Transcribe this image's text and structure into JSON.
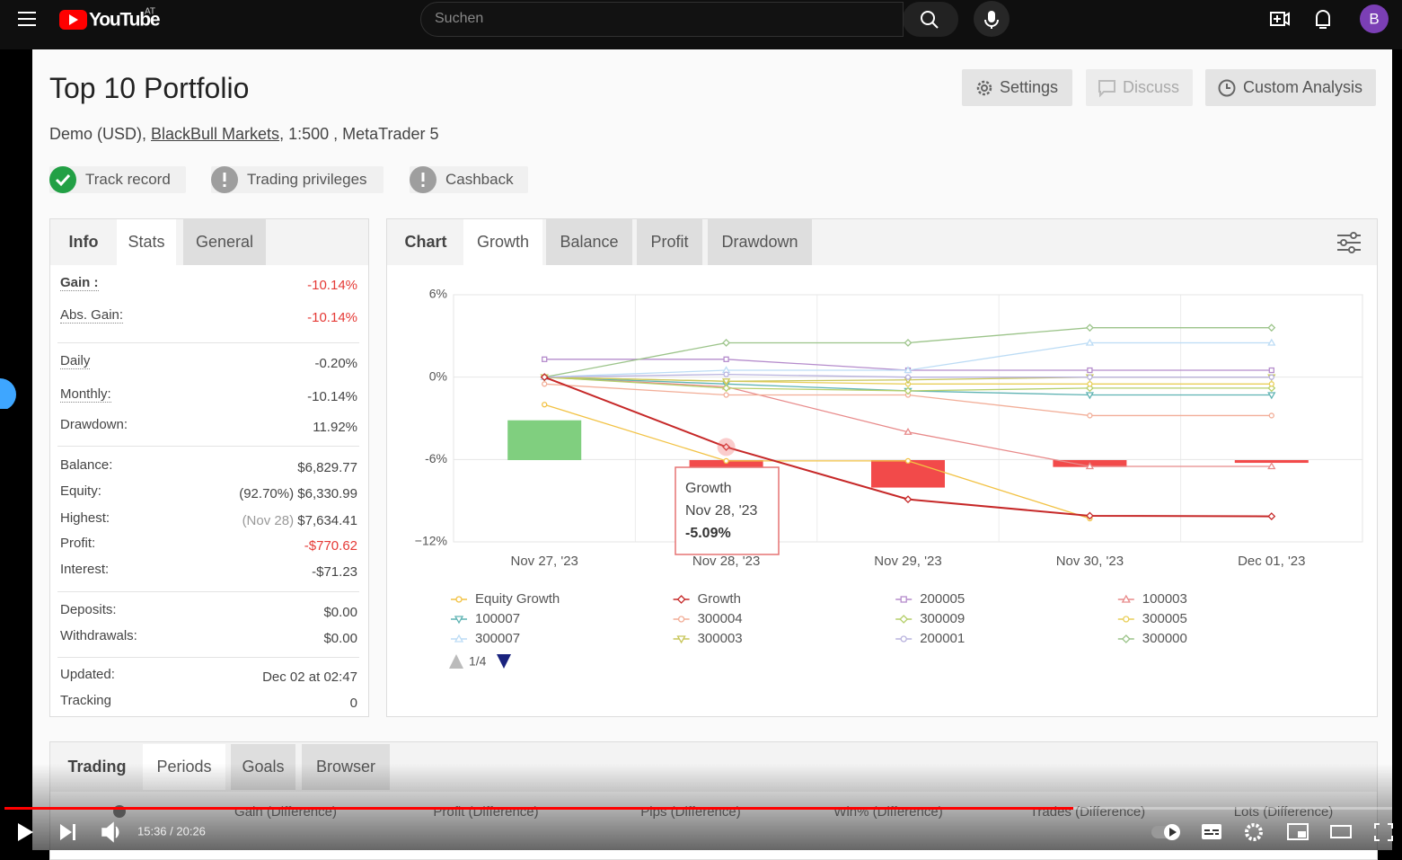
{
  "youtube": {
    "logo": "YouTube",
    "region": "AT",
    "search_placeholder": "Suchen",
    "avatar": "B"
  },
  "header": {
    "title": "Top 10 Portfolio",
    "account_prefix": "Demo (USD), ",
    "broker": "BlackBull Markets",
    "account_suffix": ", 1:500 , MetaTrader 5",
    "buttons": [
      "Settings",
      "Discuss",
      "Custom Analysis"
    ],
    "badges": [
      "Track record",
      "Trading privileges",
      "Cashback"
    ]
  },
  "stats_panel": {
    "tabs": [
      "Info",
      "Stats",
      "General"
    ],
    "groups": [
      [
        {
          "label": "Gain :",
          "value": "-10.14%",
          "color": "#e53935",
          "dotted": true
        },
        {
          "label": "Abs. Gain:",
          "value": "-10.14%",
          "color": "#e53935",
          "dotted": true
        }
      ],
      [
        {
          "label": "Daily",
          "value": "-0.20%",
          "dotted": true
        },
        {
          "label": "Monthly:",
          "value": "-10.14%",
          "dotted": true
        },
        {
          "label": "Drawdown:",
          "value": "11.92%"
        }
      ],
      [
        {
          "label": "Balance:",
          "value": "$6,829.77"
        },
        {
          "label": "Equity:",
          "note": "(92.70%)",
          "value": "$6,330.99"
        },
        {
          "label": "Highest:",
          "note": "(Nov 28)",
          "value": "$7,634.41"
        },
        {
          "label": "Profit:",
          "value": "-$770.62",
          "color": "#e53935"
        },
        {
          "label": "Interest:",
          "value": "-$71.23"
        }
      ],
      [
        {
          "label": "Deposits:",
          "value": "$0.00"
        },
        {
          "label": "Withdrawals:",
          "value": "$0.00"
        }
      ],
      [
        {
          "label": "Updated:",
          "value": "Dec 02 at 02:47"
        },
        {
          "label": "Tracking",
          "value": "0"
        }
      ]
    ]
  },
  "chart_tabs": [
    "Chart",
    "Growth",
    "Balance",
    "Profit",
    "Drawdown"
  ],
  "chart_data": {
    "type": "line",
    "categories": [
      "Nov 27, '23",
      "Nov 28, '23",
      "Nov 29, '23",
      "Nov 30, '23",
      "Dec 01, '23"
    ],
    "ylim": [
      -12,
      6
    ],
    "yticks": [
      {
        "value": 6,
        "label": "6%"
      },
      {
        "value": 0,
        "label": "0%"
      },
      {
        "value": -6,
        "label": "-6%"
      },
      {
        "value": -12,
        "label": "−12%"
      }
    ],
    "grid": true,
    "bars": {
      "values": [
        2.9,
        -0.5,
        -2.0,
        -0.5,
        -0.2
      ],
      "positive_color": "#80cf7f",
      "negative_color": "#f24a4a"
    },
    "series": [
      {
        "name": "Equity Growth",
        "color": "#f2c244",
        "marker": "circle",
        "values": [
          -2.0,
          -6.1,
          -6.1,
          -10.3,
          null
        ]
      },
      {
        "name": "Growth",
        "color": "#c62828",
        "marker": "diamond",
        "values": [
          0,
          -5.09,
          -8.9,
          -10.1,
          -10.14
        ]
      },
      {
        "name": "200005",
        "color": "#b58ccc",
        "marker": "square",
        "values": [
          1.3,
          1.3,
          0.5,
          0.5,
          0.5
        ]
      },
      {
        "name": "100003",
        "color": "#e88a8a",
        "marker": "triangle",
        "values": [
          0,
          -0.7,
          -4.0,
          -6.5,
          -6.5
        ]
      },
      {
        "name": "100007",
        "color": "#5fb3b3",
        "marker": "triangle-down",
        "values": [
          0,
          -0.5,
          -1.0,
          -1.3,
          -1.3
        ]
      },
      {
        "name": "300004",
        "color": "#f2ae98",
        "marker": "circle",
        "values": [
          -0.5,
          -1.3,
          -1.3,
          -2.8,
          -2.8
        ]
      },
      {
        "name": "300009",
        "color": "#b5cf6b",
        "marker": "diamond",
        "values": [
          0,
          -0.8,
          -1.0,
          -0.8,
          -0.8
        ]
      },
      {
        "name": "300005",
        "color": "#e9cf5a",
        "marker": "circle",
        "values": [
          0,
          -0.3,
          -0.5,
          -0.5,
          -0.5
        ]
      },
      {
        "name": "300007",
        "color": "#bcdcf5",
        "marker": "triangle",
        "values": [
          0,
          0.5,
          0.5,
          2.5,
          2.5
        ]
      },
      {
        "name": "300003",
        "color": "#c8c65a",
        "marker": "triangle-down",
        "values": [
          0,
          -0.3,
          -0.2,
          0,
          0
        ]
      },
      {
        "name": "200001",
        "color": "#b9b3de",
        "marker": "circle",
        "values": [
          0,
          0.2,
          0,
          0,
          0
        ]
      },
      {
        "name": "300000",
        "color": "#9cc48a",
        "marker": "diamond",
        "values": [
          0,
          2.5,
          2.5,
          3.6,
          3.6
        ]
      }
    ],
    "tooltip": {
      "series": "Growth",
      "date": "Nov 28, '23",
      "value": "-5.09%"
    },
    "legend_page": "1/4"
  },
  "trading_panel": {
    "tabs": [
      "Trading",
      "Periods",
      "Goals",
      "Browser"
    ],
    "columns": [
      "Gain (Difference)",
      "Profit (Difference)",
      "Pips (Difference)",
      "Win% (Difference)",
      "Trades (Difference)",
      "Lots (Difference)"
    ]
  },
  "player": {
    "time": "15:36 / 20:26"
  }
}
